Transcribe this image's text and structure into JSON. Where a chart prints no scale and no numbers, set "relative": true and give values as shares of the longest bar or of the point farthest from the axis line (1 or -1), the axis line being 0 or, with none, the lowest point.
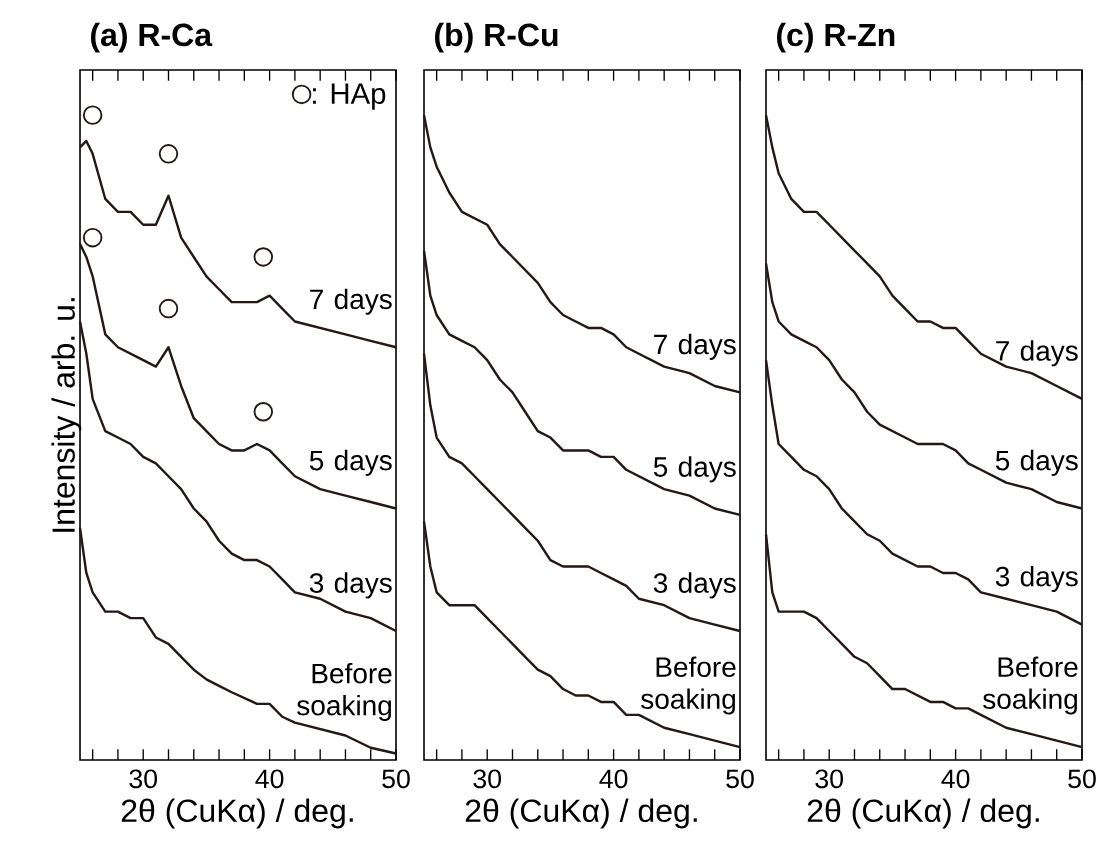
{
  "chart_data": [
    {
      "type": "line",
      "title": "(a) R-Ca",
      "xlabel": "2θ (CuKα) / deg.",
      "ylabel": "Intensity / arb. u.",
      "relative": true,
      "tick_labels": "x",
      "legend": "top right",
      "xlim": [
        25,
        50
      ],
      "xticks": [
        {
          "value": 26,
          "label": null
        },
        {
          "value": 28,
          "label": null
        },
        30,
        {
          "value": 32,
          "label": null
        },
        {
          "value": 34,
          "label": null
        },
        {
          "value": 36,
          "label": null
        },
        {
          "value": 38,
          "label": null
        },
        40,
        {
          "value": 42,
          "label": null
        },
        {
          "value": 44,
          "label": null
        },
        {
          "value": 46,
          "label": null
        },
        {
          "value": 48,
          "label": null
        },
        50
      ],
      "x": [
        25,
        25.5,
        26,
        27,
        28,
        29,
        30,
        31,
        32,
        33,
        34,
        35,
        36,
        37,
        38,
        39,
        40,
        41,
        42,
        44,
        46,
        48,
        50
      ],
      "series": [
        {
          "name": "7 days",
          "color": "#231815",
          "values": [
            0.95,
            0.96,
            0.94,
            0.87,
            0.85,
            0.85,
            0.83,
            0.83,
            0.875,
            0.81,
            0.78,
            0.75,
            0.73,
            0.71,
            0.71,
            0.71,
            0.72,
            0.7,
            0.68,
            0.67,
            0.66,
            0.65,
            0.64
          ]
        },
        {
          "name": "5 days",
          "color": "#231815",
          "values": [
            0.8,
            0.78,
            0.75,
            0.66,
            0.64,
            0.63,
            0.62,
            0.61,
            0.64,
            0.58,
            0.53,
            0.51,
            0.49,
            0.48,
            0.48,
            0.49,
            0.48,
            0.46,
            0.44,
            0.42,
            0.41,
            0.4,
            0.39
          ]
        },
        {
          "name": "3 days",
          "color": "#231815",
          "values": [
            0.68,
            0.63,
            0.56,
            0.51,
            0.5,
            0.49,
            0.47,
            0.46,
            0.44,
            0.42,
            0.39,
            0.37,
            0.34,
            0.32,
            0.31,
            0.31,
            0.3,
            0.28,
            0.26,
            0.25,
            0.23,
            0.22,
            0.2
          ]
        },
        {
          "name": "Before soaking",
          "color": "#231815",
          "values": [
            0.36,
            0.29,
            0.26,
            0.23,
            0.23,
            0.22,
            0.22,
            0.19,
            0.18,
            0.16,
            0.14,
            0.125,
            0.115,
            0.105,
            0.096,
            0.087,
            0.087,
            0.067,
            0.058,
            0.048,
            0.038,
            0.019,
            0.01
          ]
        },
        {
          "type": "scatter",
          "name": ": HAp",
          "color": "#231815",
          "marker": "circle",
          "x": [
            26,
            32,
            39.5,
            26,
            32,
            39.5
          ],
          "values": [
            1.0,
            0.94,
            0.78,
            0.81,
            0.7,
            0.54
          ]
        }
      ]
    },
    {
      "type": "line",
      "title": "(b) R-Cu",
      "xlabel": "2θ (CuKα) / deg.",
      "relative": true,
      "tick_labels": "x",
      "xlim": [
        25,
        50
      ],
      "xticks": [
        {
          "value": 26,
          "label": null
        },
        {
          "value": 28,
          "label": null
        },
        30,
        {
          "value": 32,
          "label": null
        },
        {
          "value": 34,
          "label": null
        },
        {
          "value": 36,
          "label": null
        },
        {
          "value": 38,
          "label": null
        },
        40,
        {
          "value": 42,
          "label": null
        },
        {
          "value": 44,
          "label": null
        },
        {
          "value": 46,
          "label": null
        },
        {
          "value": 48,
          "label": null
        },
        50
      ],
      "x": [
        25,
        25.5,
        26,
        27,
        28,
        29,
        30,
        31,
        32,
        33,
        34,
        35,
        36,
        37,
        38,
        39,
        40,
        41,
        42,
        44,
        46,
        48,
        50
      ],
      "series": [
        {
          "name": "7 days",
          "color": "#231815",
          "values": [
            1.0,
            0.95,
            0.92,
            0.88,
            0.85,
            0.84,
            0.83,
            0.8,
            0.78,
            0.76,
            0.74,
            0.71,
            0.69,
            0.68,
            0.67,
            0.67,
            0.66,
            0.64,
            0.63,
            0.61,
            0.6,
            0.58,
            0.57
          ]
        },
        {
          "name": "5 days",
          "color": "#231815",
          "values": [
            0.79,
            0.72,
            0.69,
            0.66,
            0.65,
            0.64,
            0.62,
            0.59,
            0.57,
            0.54,
            0.51,
            0.5,
            0.48,
            0.48,
            0.48,
            0.47,
            0.47,
            0.45,
            0.44,
            0.42,
            0.41,
            0.39,
            0.38
          ]
        },
        {
          "name": "3 days",
          "color": "#231815",
          "values": [
            0.63,
            0.55,
            0.5,
            0.47,
            0.46,
            0.44,
            0.42,
            0.4,
            0.38,
            0.36,
            0.34,
            0.31,
            0.3,
            0.3,
            0.3,
            0.29,
            0.28,
            0.27,
            0.25,
            0.24,
            0.22,
            0.21,
            0.2
          ]
        },
        {
          "name": "Before soaking",
          "color": "#231815",
          "values": [
            0.37,
            0.3,
            0.26,
            0.24,
            0.24,
            0.24,
            0.22,
            0.2,
            0.18,
            0.16,
            0.14,
            0.13,
            0.11,
            0.1,
            0.1,
            0.09,
            0.09,
            0.07,
            0.07,
            0.05,
            0.04,
            0.03,
            0.02
          ]
        }
      ]
    },
    {
      "type": "line",
      "title": "(c) R-Zn",
      "xlabel": "2θ (CuKα) / deg.",
      "relative": true,
      "tick_labels": "x",
      "xlim": [
        25,
        50
      ],
      "xticks": [
        {
          "value": 26,
          "label": null
        },
        {
          "value": 28,
          "label": null
        },
        30,
        {
          "value": 32,
          "label": null
        },
        {
          "value": 34,
          "label": null
        },
        {
          "value": 36,
          "label": null
        },
        {
          "value": 38,
          "label": null
        },
        40,
        {
          "value": 42,
          "label": null
        },
        {
          "value": 44,
          "label": null
        },
        {
          "value": 46,
          "label": null
        },
        {
          "value": 48,
          "label": null
        },
        50
      ],
      "x": [
        25,
        25.5,
        26,
        27,
        28,
        29,
        30,
        31,
        32,
        33,
        34,
        35,
        36,
        37,
        38,
        39,
        40,
        41,
        42,
        44,
        46,
        48,
        50
      ],
      "series": [
        {
          "name": "7 days",
          "color": "#231815",
          "values": [
            1.0,
            0.95,
            0.91,
            0.87,
            0.85,
            0.85,
            0.83,
            0.81,
            0.79,
            0.77,
            0.75,
            0.72,
            0.7,
            0.68,
            0.68,
            0.67,
            0.67,
            0.65,
            0.63,
            0.61,
            0.6,
            0.58,
            0.56
          ]
        },
        {
          "name": "5 days",
          "color": "#231815",
          "values": [
            0.77,
            0.71,
            0.68,
            0.66,
            0.65,
            0.64,
            0.62,
            0.59,
            0.57,
            0.54,
            0.52,
            0.51,
            0.5,
            0.49,
            0.49,
            0.49,
            0.48,
            0.46,
            0.45,
            0.43,
            0.42,
            0.4,
            0.39
          ]
        },
        {
          "name": "3 days",
          "color": "#231815",
          "values": [
            0.62,
            0.55,
            0.49,
            0.47,
            0.45,
            0.44,
            0.42,
            0.39,
            0.37,
            0.35,
            0.34,
            0.32,
            0.31,
            0.3,
            0.3,
            0.29,
            0.29,
            0.28,
            0.26,
            0.25,
            0.24,
            0.23,
            0.21
          ]
        },
        {
          "name": "Before soaking",
          "color": "#231815",
          "values": [
            0.35,
            0.26,
            0.23,
            0.23,
            0.23,
            0.22,
            0.2,
            0.18,
            0.16,
            0.15,
            0.13,
            0.11,
            0.11,
            0.1,
            0.09,
            0.09,
            0.08,
            0.08,
            0.07,
            0.05,
            0.04,
            0.03,
            0.02
          ]
        }
      ]
    }
  ]
}
